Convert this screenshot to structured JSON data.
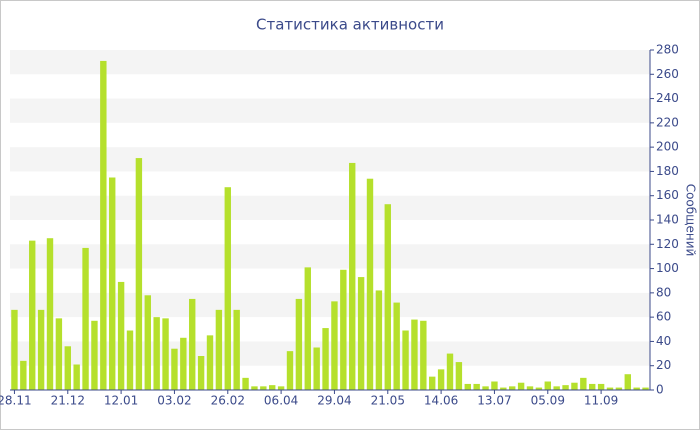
{
  "chart_data": {
    "type": "bar",
    "title": "Статистика активности",
    "y_label": "Сообщений",
    "categories": [
      "28.11",
      null,
      null,
      null,
      null,
      null,
      "21.12",
      null,
      null,
      null,
      null,
      null,
      "12.01",
      null,
      null,
      null,
      null,
      null,
      "03.02",
      null,
      null,
      null,
      null,
      null,
      "26.02",
      null,
      null,
      null,
      null,
      null,
      "06.04",
      null,
      null,
      null,
      null,
      null,
      "29.04",
      null,
      null,
      null,
      null,
      null,
      "21.05",
      null,
      null,
      null,
      null,
      null,
      "14.06",
      null,
      null,
      null,
      null,
      null,
      "13.07",
      null,
      null,
      null,
      null,
      null,
      "05.09",
      null,
      null,
      null,
      null,
      null,
      "11.09",
      null,
      null,
      null,
      null,
      null
    ],
    "values": [
      66,
      24,
      123,
      66,
      125,
      59,
      36,
      21,
      117,
      57,
      271,
      175,
      89,
      49,
      191,
      78,
      60,
      59,
      34,
      43,
      75,
      28,
      45,
      66,
      167,
      66,
      10,
      3,
      3,
      4,
      3,
      32,
      75,
      101,
      35,
      51,
      73,
      99,
      187,
      93,
      174,
      82,
      153,
      72,
      49,
      58,
      57,
      11,
      17,
      30,
      23,
      5,
      5,
      3,
      7,
      2,
      3,
      6,
      3,
      2,
      7,
      3,
      4,
      6,
      10,
      5,
      5,
      2,
      2,
      13,
      2,
      2
    ],
    "color": "#b5e02c",
    "ylim": [
      0,
      280
    ],
    "yticks": [
      0,
      20,
      40,
      60,
      80,
      100,
      120,
      140,
      160,
      180,
      200,
      220,
      240,
      260,
      280
    ],
    "grid": true,
    "y_axis_side": "right"
  }
}
